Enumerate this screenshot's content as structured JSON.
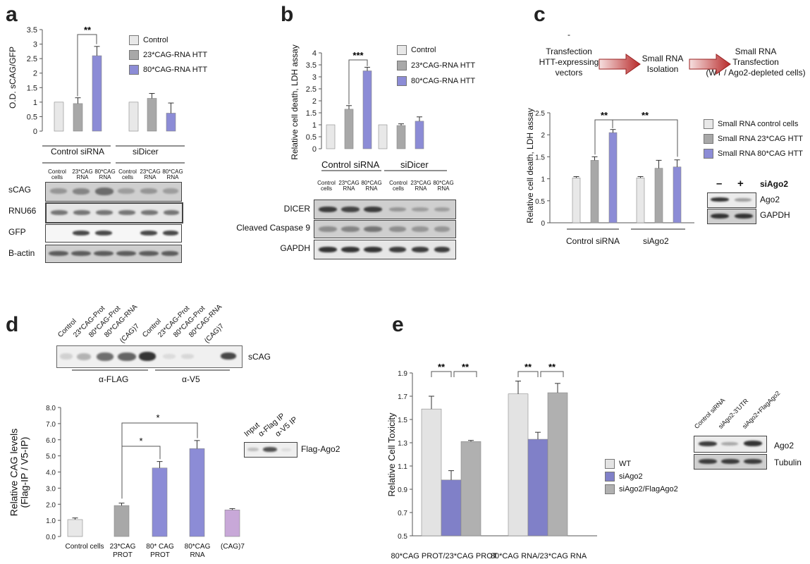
{
  "panels": {
    "a": "a",
    "b": "b",
    "c": "c",
    "d": "d",
    "e": "e"
  },
  "colors": {
    "control": "#e8e8e8",
    "htt23": "#a8a8a8",
    "htt80": "#8c8cd6",
    "cag7": "#c8a8d8",
    "e_wt": "#e3e3e3",
    "e_si": "#8080c8",
    "e_flag": "#b0b0b0"
  },
  "panel_a": {
    "legend": [
      "Control",
      "23*CAG-RNA HTT",
      "80*CAG-RNA HTT"
    ],
    "groups": [
      "Control siRNA",
      "siDicer"
    ],
    "lanes": [
      [
        "Control",
        "cells"
      ],
      [
        "23*CAG",
        "RNA"
      ],
      [
        "80*CAG",
        "RNA"
      ],
      [
        "Control",
        "cells"
      ],
      [
        "23*CAG",
        "RNA"
      ],
      [
        "80*CAG",
        "RNA"
      ]
    ],
    "blots": [
      "sCAG",
      "RNU66",
      "GFP",
      "B-actin"
    ]
  },
  "panel_b": {
    "legend": [
      "Control",
      "23*CAG-RNA HTT",
      "80*CAG-RNA HTT"
    ],
    "groups": [
      "Control siRNA",
      "siDicer"
    ],
    "lanes": [
      [
        "Control",
        "cells"
      ],
      [
        "23*CAG",
        "RNA"
      ],
      [
        "80*CAG",
        "RNA"
      ],
      [
        "Control",
        "cells"
      ],
      [
        "23*CAG",
        "RNA"
      ],
      [
        "80*CAG",
        "RNA"
      ]
    ],
    "blots": [
      "DICER",
      "Cleaved Caspase 9",
      "GAPDH"
    ]
  },
  "panel_c": {
    "dash": "-",
    "flow": [
      "Transfection\nHTT-expressing\nvectors",
      "Small RNA\nIsolation",
      "Small RNA\nTransfection\n(WT / Ago2-depleted cells)"
    ],
    "legend": [
      "Small RNA control cells",
      "Small RNA 23*CAG HTT",
      "Small RNA 80*CAG HTT"
    ],
    "groups": [
      "Control siRNA",
      "siAgo2"
    ],
    "blot_header": {
      "minus": "–",
      "plus": "+",
      "label": "siAgo2"
    },
    "blots": [
      "Ago2",
      "GAPDH"
    ]
  },
  "panel_d": {
    "lanes": [
      "Control",
      "23*CAG-Prot",
      "80*CAG-Prot",
      "80*CAG-RNA",
      "(CAG)7",
      "Control",
      "23*CAG-Prot",
      "80*CAG-Prot",
      "80*CAG-RNA",
      "(CAG)7"
    ],
    "blot_label": "sCAG",
    "groups": [
      "α-FLAG",
      "α-V5"
    ],
    "ip_lanes": [
      "Input",
      "α-Flag IP",
      "α-V5 IP"
    ],
    "ip_label": "Flag-Ago2"
  },
  "panel_e": {
    "legend": [
      "WT",
      "siAgo2",
      "siAgo2/FlagAgo2"
    ],
    "blot_lanes": [
      "Control siRNA",
      "siAgo2-3'UTR",
      "siAgo2+FlagAgo2"
    ],
    "blots": [
      "Ago2",
      "Tubulin"
    ]
  },
  "chart_data": [
    {
      "panel": "a",
      "type": "bar",
      "ylabel": "O.D. sCAG/GFP",
      "ylim": [
        0,
        3.5
      ],
      "yticks": [
        "0",
        "0.5",
        "1",
        "1.5",
        "2",
        "2.5",
        "3",
        "3.5"
      ],
      "categories": [
        "Control siRNA",
        "siDicer"
      ],
      "series": [
        {
          "name": "Control",
          "values": [
            1.0,
            1.0
          ],
          "err": [
            0,
            0
          ]
        },
        {
          "name": "23*CAG-RNA HTT",
          "values": [
            0.95,
            1.13
          ],
          "err": [
            0.2,
            0.17
          ]
        },
        {
          "name": "80*CAG-RNA HTT",
          "values": [
            2.6,
            0.62
          ],
          "err": [
            0.32,
            0.35
          ]
        }
      ],
      "annotations": [
        "**"
      ]
    },
    {
      "panel": "b",
      "type": "bar",
      "ylabel": "Relative cell death, LDH assay",
      "ylim": [
        0,
        4
      ],
      "yticks": [
        "0",
        "0.5",
        "1",
        "1.5",
        "2",
        "2.5",
        "3",
        "3.5",
        "4"
      ],
      "categories": [
        "Control siRNA",
        "siDicer"
      ],
      "series": [
        {
          "name": "Control",
          "values": [
            1.0,
            1.0
          ],
          "err": [
            0,
            0
          ]
        },
        {
          "name": "23*CAG-RNA HTT",
          "values": [
            1.65,
            0.97
          ],
          "err": [
            0.15,
            0.07
          ]
        },
        {
          "name": "80*CAG-RNA HTT",
          "values": [
            3.25,
            1.15
          ],
          "err": [
            0.15,
            0.18
          ]
        }
      ],
      "annotations": [
        "***"
      ]
    },
    {
      "panel": "c",
      "type": "bar",
      "ylabel": "Relative cell death, LDH assay",
      "ylim": [
        0,
        2.5
      ],
      "yticks": [
        "0",
        "0.5",
        "1",
        "1.5",
        "2",
        "2.5"
      ],
      "categories": [
        "Control siRNA",
        "siAgo2"
      ],
      "series": [
        {
          "name": "Small RNA control cells",
          "values": [
            1.02,
            1.02
          ],
          "err": [
            0.03,
            0.03
          ]
        },
        {
          "name": "Small RNA 23*CAG HTT",
          "values": [
            1.42,
            1.24
          ],
          "err": [
            0.08,
            0.18
          ]
        },
        {
          "name": "Small RNA 80*CAG HTT",
          "values": [
            2.05,
            1.27
          ],
          "err": [
            0.07,
            0.16
          ]
        }
      ],
      "annotations": [
        "**",
        "**"
      ]
    },
    {
      "panel": "d",
      "type": "bar",
      "ylabel": "Relative CAG levels\n(Flag-IP / V5-IP)",
      "ylim": [
        0,
        8
      ],
      "yticks": [
        "0.0",
        "1.0",
        "2.0",
        "3.0",
        "4.0",
        "5.0",
        "6.0",
        "7.0",
        "8.0"
      ],
      "categories": [
        "Control cells",
        "23*CAG PROT",
        "80* CAG PROT",
        "80*CAG RNA",
        "(CAG)7"
      ],
      "values": [
        1.05,
        1.92,
        4.25,
        5.45,
        1.65
      ],
      "err": [
        0.1,
        0.15,
        0.4,
        0.5,
        0.08
      ],
      "annotations": [
        "*",
        "*"
      ]
    },
    {
      "panel": "e",
      "type": "bar",
      "ylabel": "Relative Cell Toxicity",
      "ylim": [
        0.5,
        1.9
      ],
      "yticks": [
        "0.5",
        "0.7",
        "0.9",
        "1.1",
        "1.3",
        "1.5",
        "1.7",
        "1.9"
      ],
      "categories": [
        "80*CAG PROT/23*CAG PROT",
        "80*CAG RNA/23*CAG RNA"
      ],
      "series": [
        {
          "name": "WT",
          "values": [
            1.59,
            1.72
          ],
          "err": [
            0.11,
            0.11
          ]
        },
        {
          "name": "siAgo2",
          "values": [
            0.98,
            1.33
          ],
          "err": [
            0.08,
            0.06
          ]
        },
        {
          "name": "siAgo2/FlagAgo2",
          "values": [
            1.31,
            1.73
          ],
          "err": [
            0.01,
            0.08
          ]
        }
      ],
      "annotations": [
        "**",
        "**",
        "**",
        "**"
      ]
    }
  ]
}
